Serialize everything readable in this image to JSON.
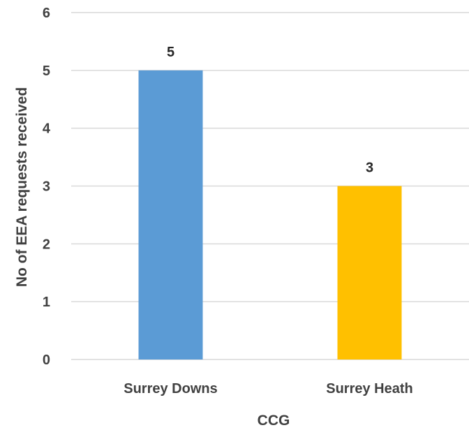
{
  "chart_data": {
    "type": "bar",
    "categories": [
      "Surrey Downs",
      "Surrey Heath"
    ],
    "values": [
      5,
      3
    ],
    "data_labels": [
      "5",
      "3"
    ],
    "colors": [
      "#5b9bd5",
      "#ffc000"
    ],
    "xlabel": "CCG",
    "ylabel": "No of EEA requests received",
    "ylim": [
      0,
      6
    ],
    "yticks": [
      "0",
      "1",
      "2",
      "3",
      "4",
      "5",
      "6"
    ],
    "grid": true,
    "legend": "none"
  }
}
